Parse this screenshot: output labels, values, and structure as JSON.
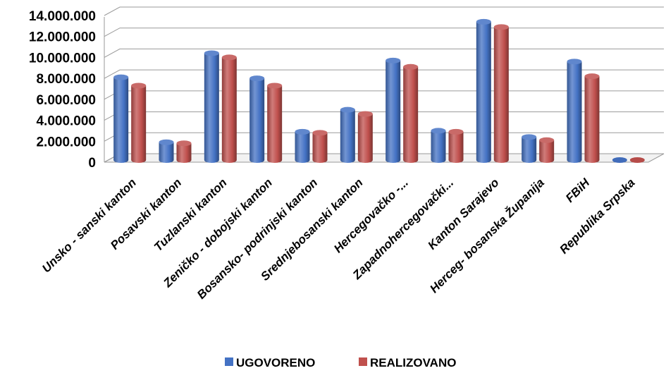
{
  "chart_data": {
    "type": "bar",
    "style": "3d-cylinder",
    "categories": [
      "Unsko - sanski kanton",
      "Posavski kanton",
      "Tuzlanski kanton",
      "Zeničko - dobojski kanton",
      "Bosansko- podrinjski kanton",
      "Srednjebosanski kanton",
      "Hercegovačko -...",
      "Zapadnohercegovački...",
      "Kanton Sarajevo",
      "Herceg- bosanska Županija",
      "FBiH",
      "Republika Srpska"
    ],
    "series": [
      {
        "name": "UGOVORENO",
        "color": "#4472C4",
        "values": [
          7900000,
          1700000,
          10200000,
          7800000,
          2700000,
          4800000,
          9500000,
          2800000,
          13200000,
          2200000,
          9400000,
          0
        ]
      },
      {
        "name": "REALIZOVANO",
        "color": "#C0504D",
        "values": [
          7100000,
          1600000,
          9800000,
          7100000,
          2600000,
          4400000,
          8900000,
          2700000,
          12700000,
          1900000,
          8000000,
          0
        ]
      }
    ],
    "yticks": [
      "0",
      "2.000.000",
      "4.000.000",
      "6.000.000",
      "8.000.000",
      "10.000.000",
      "12.000.000",
      "14.000.000"
    ],
    "ylim": [
      0,
      14000000
    ],
    "grid": true,
    "legend_position": "bottom"
  }
}
